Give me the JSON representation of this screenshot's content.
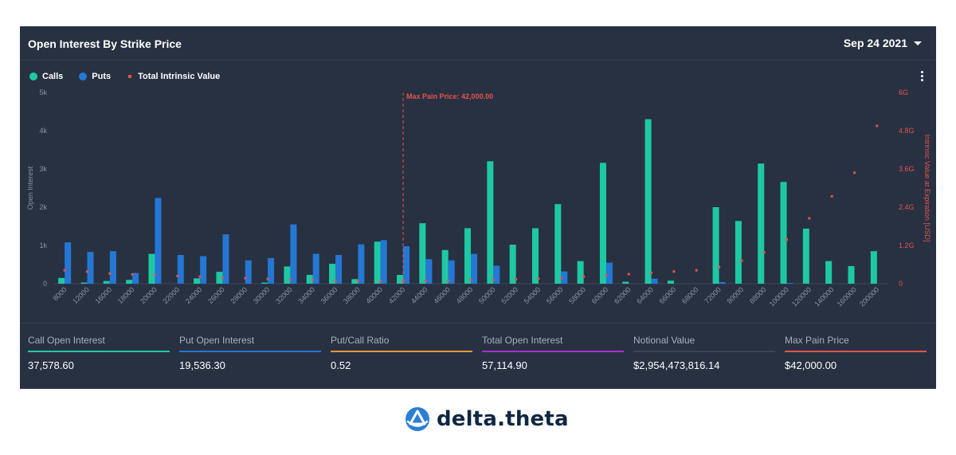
{
  "header": {
    "title": "Open Interest By Strike Price",
    "date": "Sep 24 2021"
  },
  "legend": {
    "calls": "Calls",
    "puts": "Puts",
    "intrinsic": "Total Intrinsic Value"
  },
  "colors": {
    "calls": "#1dc9a4",
    "puts": "#2477d4",
    "intrinsic": "#e5534b",
    "panel": "#283142"
  },
  "chart_data": {
    "type": "bar",
    "categories": [
      "8000",
      "12000",
      "16000",
      "18000",
      "20000",
      "22000",
      "24000",
      "26000",
      "28000",
      "30000",
      "32000",
      "34000",
      "36000",
      "38000",
      "40000",
      "42000",
      "44000",
      "46000",
      "48000",
      "50000",
      "52000",
      "54000",
      "56000",
      "58000",
      "60000",
      "62000",
      "64000",
      "66000",
      "68000",
      "72000",
      "80000",
      "88000",
      "100000",
      "120000",
      "140000",
      "160000",
      "200000"
    ],
    "series": [
      {
        "name": "Calls",
        "axis": "left",
        "values": [
          150,
          30,
          70,
          100,
          780,
          0,
          140,
          310,
          0,
          30,
          450,
          230,
          520,
          120,
          1100,
          230,
          1580,
          880,
          1450,
          3200,
          1020,
          1450,
          2080,
          590,
          3160,
          50,
          4300,
          80,
          0,
          2000,
          1640,
          3140,
          2660,
          1440,
          590,
          460,
          850
        ]
      },
      {
        "name": "Puts",
        "axis": "left",
        "values": [
          1080,
          830,
          850,
          280,
          2240,
          750,
          720,
          1290,
          610,
          670,
          1550,
          780,
          750,
          1030,
          1140,
          980,
          640,
          610,
          780,
          470,
          0,
          0,
          320,
          0,
          550,
          0,
          130,
          0,
          0,
          40,
          0,
          0,
          20,
          0,
          0,
          0,
          0
        ]
      },
      {
        "name": "Total Intrinsic Value",
        "type": "scatter",
        "axis": "right",
        "values": [
          0.42,
          0.38,
          0.32,
          0.29,
          0.27,
          0.24,
          0.22,
          0.19,
          0.17,
          0.15,
          0.13,
          0.12,
          0.1,
          0.09,
          0.08,
          0.08,
          0.09,
          0.1,
          0.12,
          0.12,
          0.14,
          0.16,
          0.18,
          0.22,
          0.26,
          0.3,
          0.34,
          0.38,
          0.42,
          0.52,
          0.72,
          0.98,
          1.38,
          2.05,
          2.74,
          3.48,
          4.95
        ]
      }
    ],
    "yleft": {
      "label": "Open Interest",
      "lim": [
        0,
        5000
      ],
      "ticks": [
        0,
        1000,
        2000,
        3000,
        4000,
        5000
      ],
      "tick_labels": [
        "0",
        "1k",
        "2k",
        "3k",
        "4k",
        "5k"
      ]
    },
    "yright": {
      "label": "Intrinsic Value at Expiration [USD]",
      "lim": [
        0,
        6
      ],
      "ticks": [
        0,
        1.2,
        2.4,
        3.6,
        4.8,
        6
      ],
      "tick_labels": [
        "0",
        "1.2G",
        "2.4G",
        "3.6G",
        "4.8G",
        "6G"
      ]
    },
    "marker": {
      "category": "42000",
      "label": "Max Pain Price: 42,000.00"
    },
    "legend_position": "top-left",
    "grid": false
  },
  "stats": [
    {
      "label": "Call Open Interest",
      "value": "37,578.60",
      "color": "#1dc9a4"
    },
    {
      "label": "Put Open Interest",
      "value": "19,536.30",
      "color": "#2477d4"
    },
    {
      "label": "Put/Call Ratio",
      "value": "0.52",
      "color": "#e8953a"
    },
    {
      "label": "Total Open Interest",
      "value": "57,114.90",
      "color": "#a62fd6"
    },
    {
      "label": "Notional Value",
      "value": "$2,954,473,816.14",
      "color": "#3a4556"
    },
    {
      "label": "Max Pain Price",
      "value": "$42,000.00",
      "color": "#e5534b"
    }
  ],
  "brand": {
    "name": "delta.theta",
    "icon": "delta-theta-logo-icon"
  }
}
